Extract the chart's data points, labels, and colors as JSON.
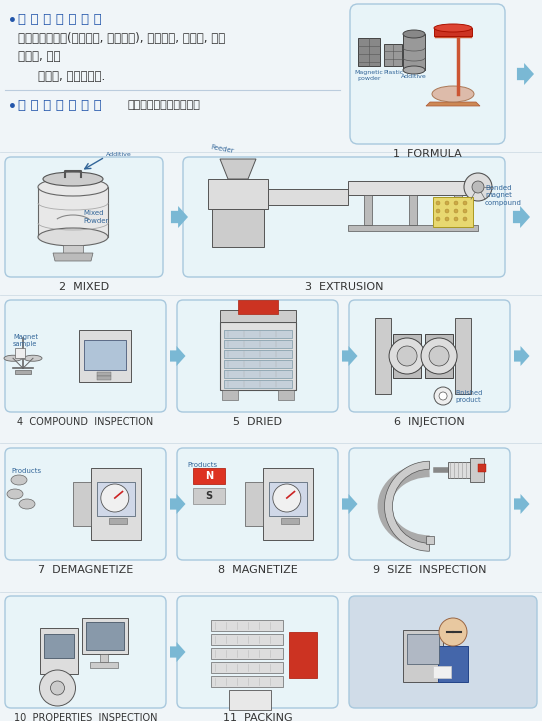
{
  "bg_color": "#f0f5f8",
  "white": "#ffffff",
  "box_fc": "#e8f4f8",
  "box_ec": "#a8c8dd",
  "arrow_fc": "#7ab8d4",
  "blue_text": "#2255aa",
  "dark_text": "#333333",
  "mid_text": "#555555",
  "cyan_text": "#3388bb",
  "label_color": "#336699",
  "line_color": "#bbccdd",
  "row1_title": "主 要 应 用 的 产 品",
  "row1_body": "高性能微型电机(步进电机, 无刷电机), 汽车电机, 复印机, 激光\n打印机, 磁控",
  "row1_body2": "感应器, 精密仪表等.",
  "row2_title": "注 塑 磁 生 产 过 程",
  "row2_sub": "（共分为十一个步骤。）",
  "step_labels": [
    "1  FORMULA",
    "2  MIXED",
    "3  EXTRUSION",
    "4  COMPOUND  INSPECTION",
    "5  DRIED",
    "6  INJECTION",
    "7  DEMAGNETIZE",
    "8  MAGNETIZE",
    "9  SIZE  INSPECTION",
    "10  PROPERTIES  INSPECTION",
    "11  PACKING"
  ]
}
